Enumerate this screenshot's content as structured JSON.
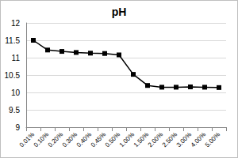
{
  "chart_data": {
    "type": "line",
    "title": "pH",
    "categories": [
      "0.01%",
      "0.10%",
      "0.20%",
      "0.30%",
      "0.40%",
      "0.45%",
      "0.50%",
      "1.00%",
      "1.50%",
      "2.00%",
      "2.50%",
      "3.00%",
      "4.00%",
      "5.00%"
    ],
    "values": [
      11.5,
      11.22,
      11.18,
      11.15,
      11.13,
      11.12,
      11.08,
      10.52,
      10.2,
      10.15,
      10.15,
      10.16,
      10.15,
      10.14
    ],
    "color": "#000000",
    "marker": "square",
    "line_style": "solid",
    "ylim": [
      9,
      12
    ],
    "yticks": [
      9,
      9.5,
      10,
      10.5,
      11,
      11.5,
      12
    ],
    "grid": true
  }
}
